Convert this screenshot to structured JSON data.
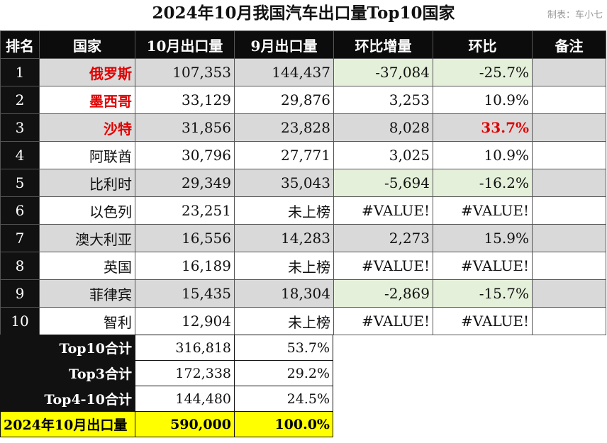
{
  "title": "2024年10月我国汽车出口量Top10国家",
  "credit": "制表：车小七",
  "headers": [
    "排名",
    "国家",
    "10月出口量",
    "9月出口量",
    "环比增量",
    "环比",
    "备注"
  ],
  "rows": [
    {
      "rank": "1",
      "country": "俄罗斯",
      "oct": "107,353",
      "sep": "144,437",
      "delta": "-37,084",
      "pct": "-25.7%",
      "note": ""
    },
    {
      "rank": "2",
      "country": "墨西哥",
      "oct": "33,129",
      "sep": "29,876",
      "delta": "3,253",
      "pct": "10.9%",
      "note": ""
    },
    {
      "rank": "3",
      "country": "沙特",
      "oct": "31,856",
      "sep": "23,828",
      "delta": "8,028",
      "pct": "33.7%",
      "note": ""
    },
    {
      "rank": "4",
      "country": "阿联酋",
      "oct": "30,796",
      "sep": "27,771",
      "delta": "3,025",
      "pct": "10.9%",
      "note": ""
    },
    {
      "rank": "5",
      "country": "比利时",
      "oct": "29,349",
      "sep": "35,043",
      "delta": "-5,694",
      "pct": "-16.2%",
      "note": ""
    },
    {
      "rank": "6",
      "country": "以色列",
      "oct": "23,251",
      "sep": "未上榜",
      "delta": "#VALUE!",
      "pct": "#VALUE!",
      "note": ""
    },
    {
      "rank": "7",
      "country": "澳大利亚",
      "oct": "16,556",
      "sep": "14,283",
      "delta": "2,273",
      "pct": "15.9%",
      "note": ""
    },
    {
      "rank": "8",
      "country": "英国",
      "oct": "16,189",
      "sep": "未上榜",
      "delta": "#VALUE!",
      "pct": "#VALUE!",
      "note": ""
    },
    {
      "rank": "9",
      "country": "菲律宾",
      "oct": "15,435",
      "sep": "18,304",
      "delta": "-2,869",
      "pct": "-15.7%",
      "note": ""
    },
    {
      "rank": "10",
      "country": "智利",
      "oct": "12,904",
      "sep": "未上榜",
      "delta": "#VALUE!",
      "pct": "#VALUE!",
      "note": ""
    }
  ],
  "summary": [
    {
      "label": "Top10合计",
      "value": "316,818",
      "share": "53.7%"
    },
    {
      "label": "Top3合计",
      "value": "172,338",
      "share": "29.2%"
    },
    {
      "label": "Top4-10合计",
      "value": "144,480",
      "share": "24.5%"
    },
    {
      "label": "2024年10月出口量",
      "value": "590,000",
      "share": "100.0%"
    }
  ],
  "colors": {
    "header_bg": "#0c0c0c",
    "gray_row": "#d9d9d9",
    "negative_highlight": "#e4f0d9",
    "red_text": "#e00000",
    "total_row": "#ffff00"
  }
}
